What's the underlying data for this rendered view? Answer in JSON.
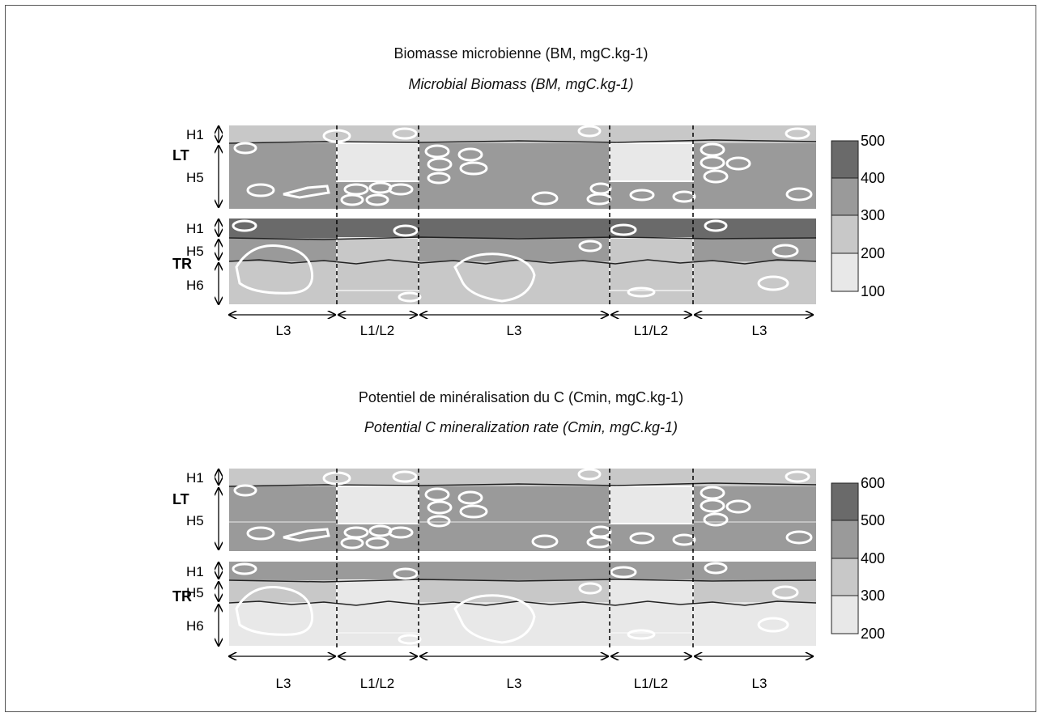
{
  "panels": [
    {
      "title": "Biomasse microbienne (BM, mgC.kg-1)",
      "subtitle": "Microbial Biomass (BM, mgC.kg-1)",
      "rows": [
        {
          "label": "LT",
          "horizons": [
            "H1",
            "H5"
          ]
        },
        {
          "label": "TR",
          "horizons": [
            "H1",
            "H5",
            "H6"
          ]
        }
      ],
      "columns": [
        "L3",
        "L1/L2",
        "L3",
        "L1/L2",
        "L3"
      ],
      "legend": {
        "ticks": [
          "500",
          "400",
          "300",
          "200",
          "100"
        ],
        "colors": [
          "#6a6a6a",
          "#9a9a9a",
          "#c8c8c8",
          "#e8e8e8"
        ]
      }
    },
    {
      "title": "Potentiel de minéralisation du C (Cmin, mgC.kg-1)",
      "subtitle": "Potential C mineralization rate (Cmin, mgC.kg-1)",
      "rows": [
        {
          "label": "LT",
          "horizons": [
            "H1",
            "H5"
          ]
        },
        {
          "label": "TR",
          "horizons": [
            "H1",
            "H5",
            "H6"
          ]
        }
      ],
      "columns": [
        "L3",
        "L1/L2",
        "L3",
        "L1/L2",
        "L3"
      ],
      "legend": {
        "ticks": [
          "600",
          "500",
          "400",
          "300",
          "200"
        ],
        "colors": [
          "#6a6a6a",
          "#9a9a9a",
          "#c8c8c8",
          "#e8e8e8"
        ]
      }
    }
  ]
}
